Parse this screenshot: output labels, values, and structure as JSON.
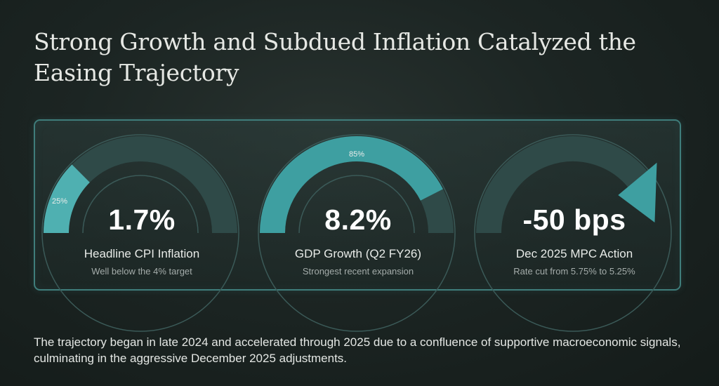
{
  "title": "Strong Growth and Subdued Inflation Catalyzed the Easing Trajectory",
  "colors": {
    "accent": "#3e9fa1",
    "accent_light": "#4fb0b1",
    "track": "#2f4a48",
    "panel_border": "#3f7d7b"
  },
  "metrics": [
    {
      "value": "1.7%",
      "label": "Headline CPI Inflation",
      "sublabel": "Well below the 4% target",
      "gauge_percent_label": "25%",
      "gauge_fraction": 0.25,
      "gauge_type": "partial-arc"
    },
    {
      "value": "8.2%",
      "label": "GDP Growth (Q2 FY26)",
      "sublabel": "Strongest recent expansion",
      "gauge_percent_label": "85%",
      "gauge_fraction": 0.85,
      "gauge_type": "partial-arc"
    },
    {
      "value": "-50 bps",
      "label": "Dec 2025 MPC Action",
      "sublabel": "Rate cut from 5.75% to 5.25%",
      "gauge_type": "downward-arrow"
    }
  ],
  "footer": "The trajectory began in late 2024 and accelerated through 2025 due to a confluence of supportive macroeconomic signals, culminating in the aggressive December 2025 adjustments."
}
